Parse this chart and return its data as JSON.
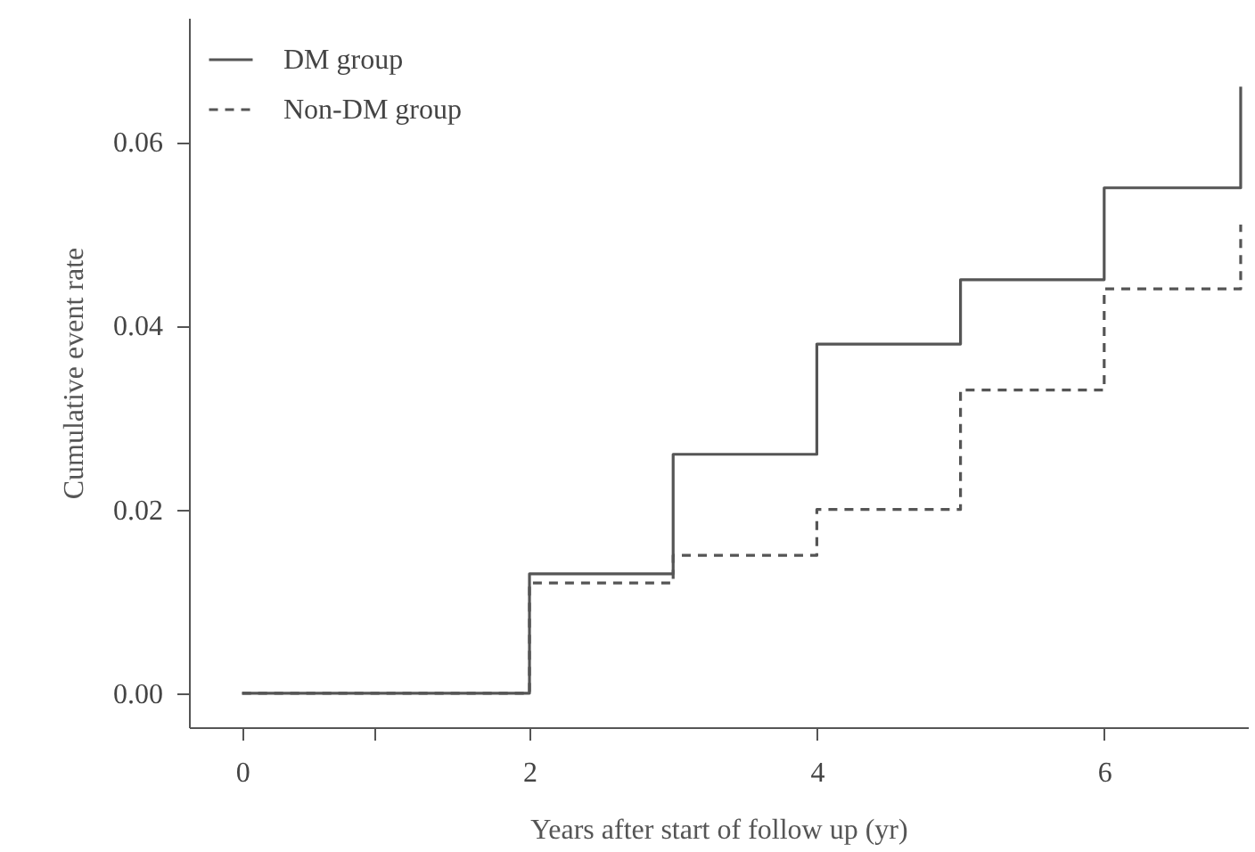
{
  "chart_data": {
    "type": "step",
    "xlabel": "Years after start of follow up (yr)",
    "ylabel": "Cumulative event rate",
    "x": [
      0,
      2,
      3,
      4,
      5,
      6,
      6.95
    ],
    "series": [
      {
        "name": "DM group",
        "color": "#555555",
        "line_style": "solid",
        "values": [
          0,
          0.013,
          0.026,
          0.038,
          0.045,
          0.055,
          0.066
        ]
      },
      {
        "name": "Non-DM group",
        "color": "#555555",
        "line_style": "dashed",
        "values": [
          0,
          0.012,
          0.015,
          0.02,
          0.033,
          0.044,
          0.051
        ]
      }
    ],
    "xlim": [
      -0.37,
      7
    ],
    "xticks": [
      0,
      2,
      4,
      6,
      {
        "value": 0.92,
        "label": null
      }
    ],
    "ylim": [
      -0.0037,
      0.0735
    ],
    "yticks": [
      {
        "value": 0,
        "label": "0.00"
      },
      {
        "value": 0.02,
        "label": "0.02"
      },
      {
        "value": 0.04,
        "label": "0.04"
      },
      {
        "value": 0.06,
        "label": "0.06"
      }
    ],
    "grid": false,
    "legend": "top left",
    "marker": "none"
  }
}
